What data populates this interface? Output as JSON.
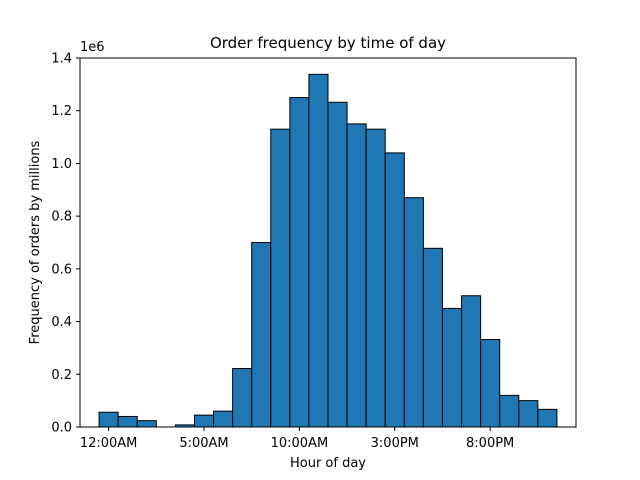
{
  "chart_data": {
    "type": "bar",
    "title": "Order frequency by time of day",
    "xlabel": "Hour of day",
    "ylabel": "Frequency of orders by millions",
    "y_multiplier_label": "1e6",
    "bar_color": "#1f77b4",
    "edge_color": "#000000",
    "xlim": [
      -1.5,
      24.5
    ],
    "ylim": [
      0,
      1.4
    ],
    "yticks": [
      0.0,
      0.2,
      0.4,
      0.6,
      0.8,
      1.0,
      1.2,
      1.4
    ],
    "ytick_labels": [
      "0.0",
      "0.2",
      "0.4",
      "0.6",
      "0.8",
      "1.0",
      "1.2",
      "1.4"
    ],
    "xticks": [
      0,
      5,
      10,
      15,
      20
    ],
    "xtick_labels": [
      "12:00AM",
      "5:00AM",
      "10:00AM",
      "3:00PM",
      "8:00PM"
    ],
    "categories": [
      0,
      1,
      2,
      3,
      4,
      5,
      6,
      7,
      8,
      9,
      10,
      11,
      12,
      13,
      14,
      15,
      16,
      17,
      18,
      19,
      20,
      21,
      22,
      23
    ],
    "values": [
      0.056,
      0.04,
      0.024,
      0.0,
      0.008,
      0.045,
      0.06,
      0.222,
      0.7,
      1.13,
      1.25,
      1.338,
      1.232,
      1.15,
      1.13,
      1.04,
      0.87,
      0.678,
      0.45,
      0.498,
      0.332,
      0.12,
      0.1,
      0.067
    ]
  }
}
